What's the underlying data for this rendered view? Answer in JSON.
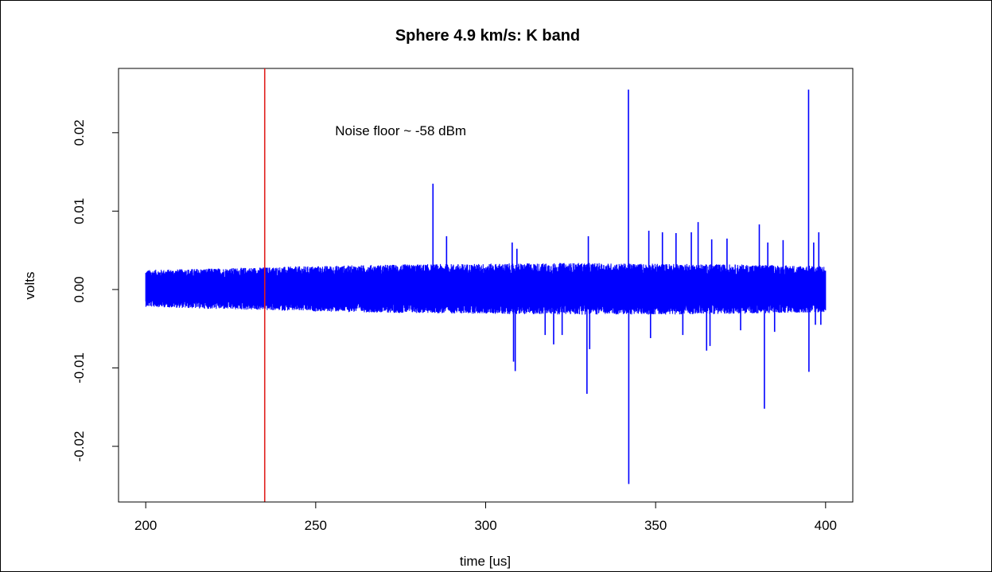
{
  "chart_data": {
    "type": "line",
    "title": "Sphere 4.9 km/s: K band",
    "xlabel": "time [us]",
    "ylabel": "volts",
    "xlim": [
      192,
      408
    ],
    "ylim": [
      -0.0271,
      0.0282
    ],
    "x_ticks": [
      200,
      250,
      300,
      350,
      400
    ],
    "x_tick_labels": [
      "200",
      "250",
      "300",
      "350",
      "400"
    ],
    "y_ticks": [
      -0.02,
      -0.01,
      0.0,
      0.01,
      0.02
    ],
    "y_tick_labels": [
      "-0.02",
      "-0.01",
      "0.00",
      "0.01",
      "0.02"
    ],
    "grid": false,
    "series": [
      {
        "color": "#0000ff",
        "x_range": [
          200,
          400
        ],
        "noise_envelope": {
          "x": [
            200,
            220,
            250,
            275,
            300,
            325,
            350,
            375,
            400
          ],
          "upper": [
            0.0025,
            0.0027,
            0.003,
            0.0032,
            0.0033,
            0.0034,
            0.0033,
            0.0032,
            0.003
          ],
          "lower": [
            -0.0022,
            -0.0025,
            -0.0028,
            -0.003,
            -0.0031,
            -0.0032,
            -0.0032,
            -0.0031,
            -0.0029
          ]
        },
        "spikes": [
          {
            "x": 284.5,
            "y": 0.0135
          },
          {
            "x": 288.5,
            "y": 0.0068
          },
          {
            "x": 307.8,
            "y": 0.006
          },
          {
            "x": 308.2,
            "y": -0.0092
          },
          {
            "x": 308.7,
            "y": -0.0104
          },
          {
            "x": 309.2,
            "y": 0.0052
          },
          {
            "x": 317.5,
            "y": -0.0058
          },
          {
            "x": 320,
            "y": -0.007
          },
          {
            "x": 322.5,
            "y": -0.0058
          },
          {
            "x": 329.8,
            "y": -0.0133
          },
          {
            "x": 330.2,
            "y": 0.0068
          },
          {
            "x": 330.6,
            "y": -0.0076
          },
          {
            "x": 342,
            "y": 0.0255
          },
          {
            "x": 342.1,
            "y": -0.0248
          },
          {
            "x": 348,
            "y": 0.0075
          },
          {
            "x": 348.5,
            "y": -0.0062
          },
          {
            "x": 352,
            "y": 0.0073
          },
          {
            "x": 356,
            "y": 0.0072
          },
          {
            "x": 358,
            "y": -0.0058
          },
          {
            "x": 360.5,
            "y": 0.0073
          },
          {
            "x": 362.5,
            "y": 0.0086
          },
          {
            "x": 365,
            "y": -0.0078
          },
          {
            "x": 366,
            "y": -0.0072
          },
          {
            "x": 366.5,
            "y": 0.0064
          },
          {
            "x": 371,
            "y": 0.0065
          },
          {
            "x": 375,
            "y": -0.0052
          },
          {
            "x": 380.5,
            "y": 0.0083
          },
          {
            "x": 382,
            "y": -0.0152
          },
          {
            "x": 383,
            "y": 0.006
          },
          {
            "x": 385,
            "y": -0.0054
          },
          {
            "x": 387.5,
            "y": 0.0063
          },
          {
            "x": 395,
            "y": 0.0255
          },
          {
            "x": 395.1,
            "y": -0.0105
          },
          {
            "x": 396.5,
            "y": 0.006
          },
          {
            "x": 397,
            "y": -0.0045
          },
          {
            "x": 398,
            "y": 0.0073
          },
          {
            "x": 398.6,
            "y": -0.0045
          }
        ]
      }
    ],
    "vline": {
      "x": 235,
      "color": "#e0201e"
    },
    "annotations": [
      {
        "text": "Noise floor ~ -58 dBm",
        "x": 275,
        "y": 0.0197
      }
    ]
  }
}
